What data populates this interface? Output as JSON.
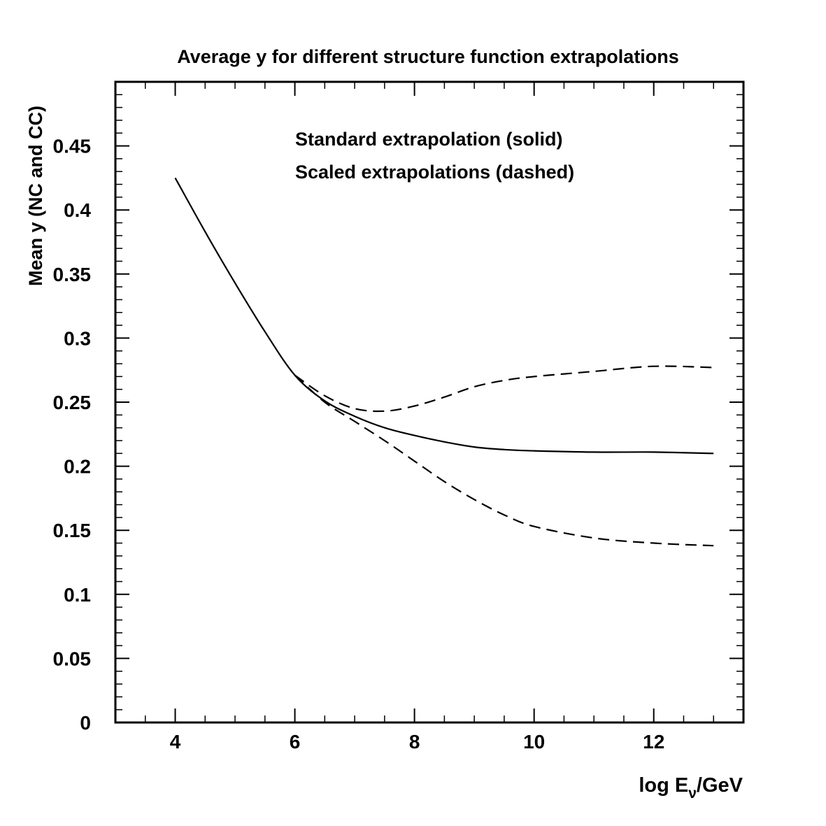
{
  "chart_data": {
    "type": "line",
    "title": "Average y for different structure function extrapolations",
    "xlabel": {
      "prefix": "log E",
      "subscript": "ν",
      "suffix": "/GeV"
    },
    "ylabel": "Mean y (NC and CC)",
    "xlim": [
      3,
      13.5
    ],
    "ylim": [
      0,
      0.5
    ],
    "x_ticks": [
      4,
      6,
      8,
      10,
      12
    ],
    "y_ticks": [
      0,
      0.05,
      0.1,
      0.15,
      0.2,
      0.25,
      0.3,
      0.35,
      0.4,
      0.45
    ],
    "x_tick_labels": [
      "4",
      "6",
      "8",
      "10",
      "12"
    ],
    "y_tick_labels": [
      "0",
      "0.05",
      "0.1",
      "0.15",
      "0.2",
      "0.25",
      "0.3",
      "0.35",
      "0.4",
      "0.45"
    ],
    "annotations": [
      "Standard extrapolation (solid)",
      "Scaled extrapolations (dashed)"
    ],
    "grid": false,
    "series": [
      {
        "style": "solid",
        "x": [
          4,
          4.5,
          5,
          5.5,
          6,
          6.5,
          7,
          7.5,
          8,
          8.5,
          9,
          9.5,
          10,
          11,
          12,
          13
        ],
        "y": [
          0.425,
          0.383,
          0.343,
          0.305,
          0.271,
          0.251,
          0.239,
          0.23,
          0.224,
          0.219,
          0.215,
          0.213,
          0.212,
          0.211,
          0.211,
          0.21
        ]
      },
      {
        "style": "dashed",
        "x": [
          6,
          6.5,
          7,
          7.5,
          8,
          8.5,
          9,
          9.5,
          10,
          11,
          12,
          13
        ],
        "y": [
          0.271,
          0.255,
          0.245,
          0.243,
          0.247,
          0.254,
          0.262,
          0.267,
          0.27,
          0.274,
          0.278,
          0.277
        ]
      },
      {
        "style": "dashed",
        "x": [
          6,
          6.5,
          7,
          7.5,
          8,
          8.5,
          9,
          9.5,
          10,
          11,
          12,
          13
        ],
        "y": [
          0.271,
          0.25,
          0.235,
          0.22,
          0.204,
          0.188,
          0.174,
          0.162,
          0.153,
          0.144,
          0.14,
          0.138
        ]
      }
    ]
  }
}
